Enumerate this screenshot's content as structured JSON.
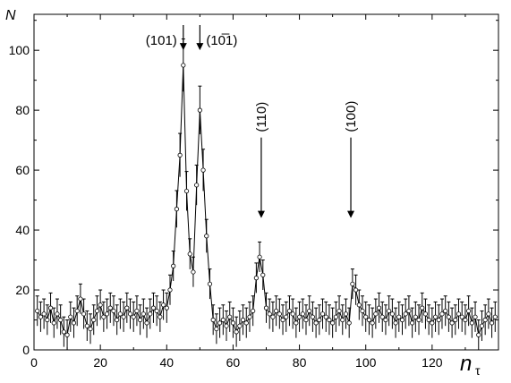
{
  "chart_data": {
    "type": "line",
    "title": "",
    "xlabel": "n",
    "xlabel_sub": "τ",
    "ylabel": "N",
    "xlim": [
      0,
      140
    ],
    "ylim": [
      0,
      112
    ],
    "xticks": [
      0,
      20,
      40,
      60,
      80,
      100,
      120
    ],
    "yticks": [
      0,
      20,
      40,
      60,
      80,
      100
    ],
    "grid": false,
    "series": [
      {
        "x": [
          1,
          2,
          3,
          4,
          5,
          6,
          7,
          8,
          9,
          10,
          11,
          12,
          13,
          14,
          15,
          16,
          17,
          18,
          19,
          20,
          21,
          22,
          23,
          24,
          25,
          26,
          27,
          28,
          29,
          30,
          31,
          32,
          33,
          34,
          35,
          36,
          37,
          38,
          39,
          40,
          41,
          42,
          43,
          44,
          45,
          46,
          47,
          48,
          49,
          50,
          51,
          52,
          53,
          54,
          55,
          56,
          57,
          58,
          59,
          60,
          61,
          62,
          63,
          64,
          65,
          66,
          67,
          68,
          69,
          70,
          71,
          72,
          73,
          74,
          75,
          76,
          77,
          78,
          79,
          80,
          81,
          82,
          83,
          84,
          85,
          86,
          87,
          88,
          89,
          90,
          91,
          92,
          93,
          94,
          95,
          96,
          97,
          98,
          99,
          100,
          101,
          102,
          103,
          104,
          105,
          106,
          107,
          108,
          109,
          110,
          111,
          112,
          113,
          114,
          115,
          116,
          117,
          118,
          119,
          120,
          121,
          122,
          123,
          124,
          125,
          126,
          127,
          128,
          129,
          130,
          131,
          132,
          133,
          134,
          135,
          136,
          137,
          138,
          139
        ],
        "y": [
          13,
          11,
          12,
          10,
          14,
          9,
          12,
          10,
          6,
          5,
          11,
          9,
          13,
          17,
          12,
          8,
          7,
          10,
          13,
          15,
          11,
          12,
          14,
          13,
          10,
          12,
          11,
          14,
          12,
          11,
          13,
          10,
          12,
          9,
          12,
          14,
          13,
          11,
          15,
          14,
          20,
          28,
          47,
          65,
          95,
          53,
          32,
          26,
          55,
          80,
          60,
          38,
          22,
          10,
          7,
          9,
          10,
          8,
          11,
          9,
          6,
          8,
          10,
          9,
          11,
          13,
          24,
          31,
          25,
          14,
          12,
          11,
          13,
          12,
          10,
          11,
          13,
          12,
          9,
          11,
          12,
          10,
          13,
          11,
          9,
          10,
          12,
          11,
          10,
          9,
          11,
          13,
          10,
          12,
          9,
          22,
          20,
          15,
          13,
          11,
          10,
          9,
          12,
          14,
          11,
          10,
          13,
          12,
          9,
          11,
          10,
          12,
          13,
          9,
          11,
          10,
          14,
          12,
          10,
          9,
          11,
          10,
          12,
          13,
          11,
          9,
          10,
          12,
          11,
          10,
          13,
          9,
          11,
          5,
          8,
          10,
          12,
          9,
          11
        ],
        "error": 5
      }
    ],
    "annotations": [
      {
        "label": "(101)",
        "x": 45,
        "y": 100
      },
      {
        "label": "(10̅1)",
        "x": 50,
        "y": 100
      },
      {
        "label": "(110)",
        "x": 68.5,
        "y": 44
      },
      {
        "label": "(100)",
        "x": 95.5,
        "y": 44
      }
    ]
  }
}
